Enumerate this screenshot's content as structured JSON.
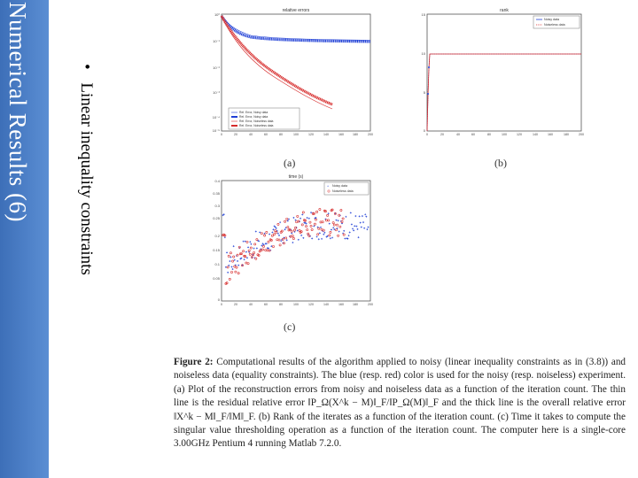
{
  "slide": {
    "title": "Numerical Results (6)",
    "bullet": "Linear inequality constraints"
  },
  "figure": {
    "subcaptions": [
      "(a)",
      "(b)",
      "(c)"
    ],
    "caption_label": "Figure 2:",
    "caption_text": "Computational results of the algorithm applied to noisy (linear inequality constraints as in (3.8)) and noiseless data (equality constraints). The blue (resp. red) color is used for the noisy (resp. noiseless) experiment. (a) Plot of the reconstruction errors from noisy and noiseless data as a function of the iteration count. The thin line is the residual relative error ‖P_Ω(X^k − M)‖_F/‖P_Ω(M)‖_F and the thick line is the overall relative error ‖X^k − M‖_F/‖M‖_F. (b) Rank of the iterates as a function of the iteration count. (c) Time it takes to compute the singular value thresholding operation as a function of the iteration count. The computer here is a single-core 3.00GHz Pentium 4 running Matlab 7.2.0."
  },
  "colors": {
    "noisy": "#1f3fd6",
    "noiseless": "#d62a2a",
    "titlebar": "#4a7cc4"
  },
  "chart_data": [
    {
      "type": "line",
      "panel": "(a)",
      "title": "relative errors",
      "scale": "log-y",
      "x_range": [
        0,
        200
      ],
      "series": [
        {
          "name": "Rel. Error, Noisy data",
          "points": [
            [
              0,
              0.9
            ],
            [
              10,
              0.25
            ],
            [
              25,
              0.12
            ],
            [
              50,
              0.075
            ],
            [
              100,
              0.06
            ],
            [
              150,
              0.057
            ],
            [
              200,
              0.056
            ]
          ]
        },
        {
          "name": "Rel. Error, Noiseless data",
          "points": [
            [
              0,
              0.9
            ],
            [
              10,
              0.2
            ],
            [
              25,
              0.06
            ],
            [
              50,
              0.012
            ],
            [
              100,
              0.0006
            ],
            [
              150,
              5e-05
            ],
            [
              170,
              1.5e-05
            ]
          ]
        }
      ]
    },
    {
      "type": "line",
      "panel": "(b)",
      "title": "rank",
      "legend": [
        "Noisy data",
        "Noiseless data"
      ],
      "x_range": [
        0,
        200
      ],
      "series": [
        {
          "name": "Noisy data",
          "points": [
            [
              0,
              0
            ],
            [
              2,
              5
            ],
            [
              4,
              10
            ],
            [
              200,
              10
            ]
          ]
        },
        {
          "name": "Noiseless data",
          "points": [
            [
              0,
              0
            ],
            [
              2,
              5
            ],
            [
              4,
              10
            ],
            [
              200,
              10
            ]
          ]
        }
      ]
    },
    {
      "type": "scatter",
      "panel": "(c)",
      "title": "time (s)",
      "legend": [
        "Noisy data",
        "Noiseless data"
      ],
      "x_range": [
        0,
        200
      ],
      "series": [
        {
          "name": "Noisy data",
          "x": [
            5,
            20,
            40,
            60,
            80,
            100,
            120,
            140,
            160,
            180,
            195
          ],
          "y": [
            0.12,
            0.15,
            0.18,
            0.2,
            0.22,
            0.24,
            0.25,
            0.25,
            0.25,
            0.25,
            0.25
          ]
        },
        {
          "name": "Noiseless data",
          "x": [
            5,
            20,
            40,
            60,
            80,
            100,
            120,
            140,
            160
          ],
          "y": [
            0.1,
            0.13,
            0.16,
            0.19,
            0.22,
            0.25,
            0.26,
            0.26,
            0.26
          ]
        }
      ]
    }
  ]
}
